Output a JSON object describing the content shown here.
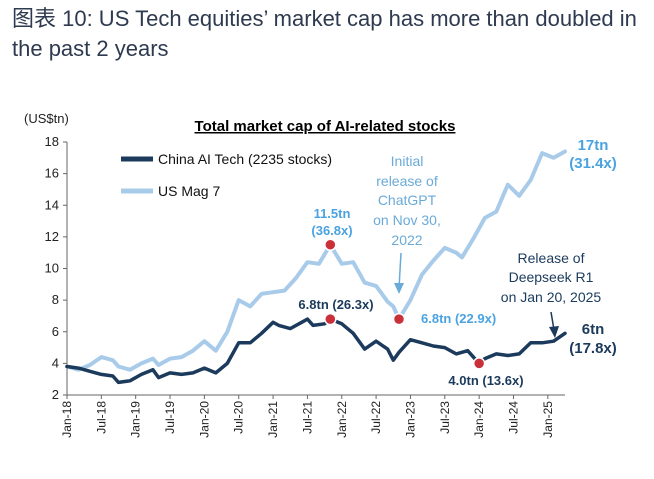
{
  "figure_title": "图表 10: US Tech equities’ market cap has more than doubled in the past 2 years",
  "chart_data": {
    "type": "line",
    "title": "Total market cap of AI-related stocks",
    "unit_label": "(US$tn)",
    "ylim": [
      2,
      18
    ],
    "yticks": [
      "2",
      "4",
      "6",
      "8",
      "10",
      "12",
      "14",
      "16",
      "18"
    ],
    "x_range": [
      "2018-01",
      "2025-04"
    ],
    "xticks": [
      {
        "label": "Jan-18",
        "date": "2018-01"
      },
      {
        "label": "Jul-18",
        "date": "2018-07"
      },
      {
        "label": "Jan-19",
        "date": "2019-01"
      },
      {
        "label": "Jul-19",
        "date": "2019-07"
      },
      {
        "label": "Jan-20",
        "date": "2020-01"
      },
      {
        "label": "Jul-20",
        "date": "2020-07"
      },
      {
        "label": "Jan-21",
        "date": "2021-01"
      },
      {
        "label": "Jul-21",
        "date": "2021-07"
      },
      {
        "label": "Jan-22",
        "date": "2022-01"
      },
      {
        "label": "Jul-22",
        "date": "2022-07"
      },
      {
        "label": "Jan-23",
        "date": "2023-01"
      },
      {
        "label": "Jul-23",
        "date": "2023-07"
      },
      {
        "label": "Jan-24",
        "date": "2024-01"
      },
      {
        "label": "Jul-24",
        "date": "2024-07"
      },
      {
        "label": "Jan-25",
        "date": "2025-01"
      }
    ],
    "grid": false,
    "legend_position": "top-left",
    "series": [
      {
        "name": "China AI Tech (2235 stocks)",
        "color": "#1b3a5c",
        "points": [
          [
            "2018-01",
            3.8
          ],
          [
            "2018-03",
            3.7
          ],
          [
            "2018-05",
            3.5
          ],
          [
            "2018-07",
            3.3
          ],
          [
            "2018-09",
            3.2
          ],
          [
            "2018-10",
            2.8
          ],
          [
            "2018-12",
            2.9
          ],
          [
            "2019-02",
            3.3
          ],
          [
            "2019-04",
            3.6
          ],
          [
            "2019-05",
            3.1
          ],
          [
            "2019-07",
            3.4
          ],
          [
            "2019-09",
            3.3
          ],
          [
            "2019-11",
            3.4
          ],
          [
            "2020-01",
            3.7
          ],
          [
            "2020-03",
            3.4
          ],
          [
            "2020-05",
            4.0
          ],
          [
            "2020-07",
            5.3
          ],
          [
            "2020-09",
            5.3
          ],
          [
            "2020-11",
            5.9
          ],
          [
            "2021-01",
            6.6
          ],
          [
            "2021-02",
            6.4
          ],
          [
            "2021-04",
            6.2
          ],
          [
            "2021-06",
            6.6
          ],
          [
            "2021-07",
            6.8
          ],
          [
            "2021-08",
            6.4
          ],
          [
            "2021-10",
            6.5
          ],
          [
            "2021-11",
            6.8
          ],
          [
            "2022-01",
            6.5
          ],
          [
            "2022-03",
            5.9
          ],
          [
            "2022-05",
            4.9
          ],
          [
            "2022-07",
            5.4
          ],
          [
            "2022-09",
            4.9
          ],
          [
            "2022-10",
            4.2
          ],
          [
            "2022-11",
            4.7
          ],
          [
            "2023-01",
            5.5
          ],
          [
            "2023-03",
            5.3
          ],
          [
            "2023-05",
            5.1
          ],
          [
            "2023-07",
            5.0
          ],
          [
            "2023-09",
            4.6
          ],
          [
            "2023-11",
            4.8
          ],
          [
            "2024-01",
            4.0
          ],
          [
            "2024-02",
            4.3
          ],
          [
            "2024-04",
            4.6
          ],
          [
            "2024-06",
            4.5
          ],
          [
            "2024-08",
            4.6
          ],
          [
            "2024-10",
            5.3
          ],
          [
            "2024-12",
            5.3
          ],
          [
            "2025-02",
            5.4
          ],
          [
            "2025-04",
            5.9
          ]
        ]
      },
      {
        "name": "US Mag 7",
        "color": "#a9cbea",
        "points": [
          [
            "2018-01",
            3.8
          ],
          [
            "2018-03",
            3.6
          ],
          [
            "2018-05",
            3.9
          ],
          [
            "2018-07",
            4.4
          ],
          [
            "2018-09",
            4.2
          ],
          [
            "2018-10",
            3.8
          ],
          [
            "2018-12",
            3.6
          ],
          [
            "2019-02",
            4.0
          ],
          [
            "2019-04",
            4.3
          ],
          [
            "2019-05",
            3.9
          ],
          [
            "2019-07",
            4.3
          ],
          [
            "2019-09",
            4.4
          ],
          [
            "2019-11",
            4.8
          ],
          [
            "2020-01",
            5.4
          ],
          [
            "2020-03",
            4.8
          ],
          [
            "2020-05",
            6.0
          ],
          [
            "2020-07",
            8.0
          ],
          [
            "2020-09",
            7.6
          ],
          [
            "2020-11",
            8.4
          ],
          [
            "2021-01",
            8.5
          ],
          [
            "2021-03",
            8.6
          ],
          [
            "2021-05",
            9.4
          ],
          [
            "2021-07",
            10.4
          ],
          [
            "2021-09",
            10.3
          ],
          [
            "2021-11",
            11.5
          ],
          [
            "2022-01",
            10.3
          ],
          [
            "2022-03",
            10.4
          ],
          [
            "2022-05",
            9.1
          ],
          [
            "2022-07",
            8.9
          ],
          [
            "2022-09",
            7.9
          ],
          [
            "2022-10",
            7.6
          ],
          [
            "2022-11",
            6.8
          ],
          [
            "2023-01",
            8.0
          ],
          [
            "2023-03",
            9.6
          ],
          [
            "2023-05",
            10.5
          ],
          [
            "2023-07",
            11.3
          ],
          [
            "2023-09",
            11.0
          ],
          [
            "2023-10",
            10.7
          ],
          [
            "2023-12",
            11.9
          ],
          [
            "2024-02",
            13.2
          ],
          [
            "2024-04",
            13.6
          ],
          [
            "2024-06",
            15.3
          ],
          [
            "2024-08",
            14.6
          ],
          [
            "2024-10",
            15.6
          ],
          [
            "2024-12",
            17.3
          ],
          [
            "2025-02",
            17.0
          ],
          [
            "2025-04",
            17.4
          ]
        ]
      }
    ],
    "annotations": [
      {
        "text": "11.5tn",
        "color": "#4aa3e0"
      },
      {
        "text": "(36.8x)",
        "color": "#4aa3e0"
      },
      {
        "text": "6.8tn (26.3x)",
        "color": "#1b3a5c"
      },
      {
        "text": "6.8tn (22.9x)",
        "color": "#4aa3e0"
      },
      {
        "text": "4.0tn (13.6x)",
        "color": "#1b3a5c"
      },
      {
        "text": "17tn",
        "color": "#4aa3e0"
      },
      {
        "text": "(31.4x)",
        "color": "#4aa3e0"
      },
      {
        "text": "6tn",
        "color": "#1b3a5c"
      },
      {
        "text": "(17.8x)",
        "color": "#1b3a5c"
      }
    ],
    "callouts": {
      "chatgpt": [
        "Initial",
        "release of",
        "ChatGPT",
        "on Nov 30,",
        "2022"
      ],
      "deepseek": [
        "Release of",
        "Deepseek R1",
        "on Jan 20, 2025"
      ]
    },
    "markers": [
      {
        "date": "2021-11",
        "value": 11.5
      },
      {
        "date": "2021-11",
        "value": 6.8
      },
      {
        "date": "2022-11",
        "value": 6.8
      },
      {
        "date": "2024-01",
        "value": 4.0
      }
    ],
    "marker_color": "#c9303a"
  }
}
